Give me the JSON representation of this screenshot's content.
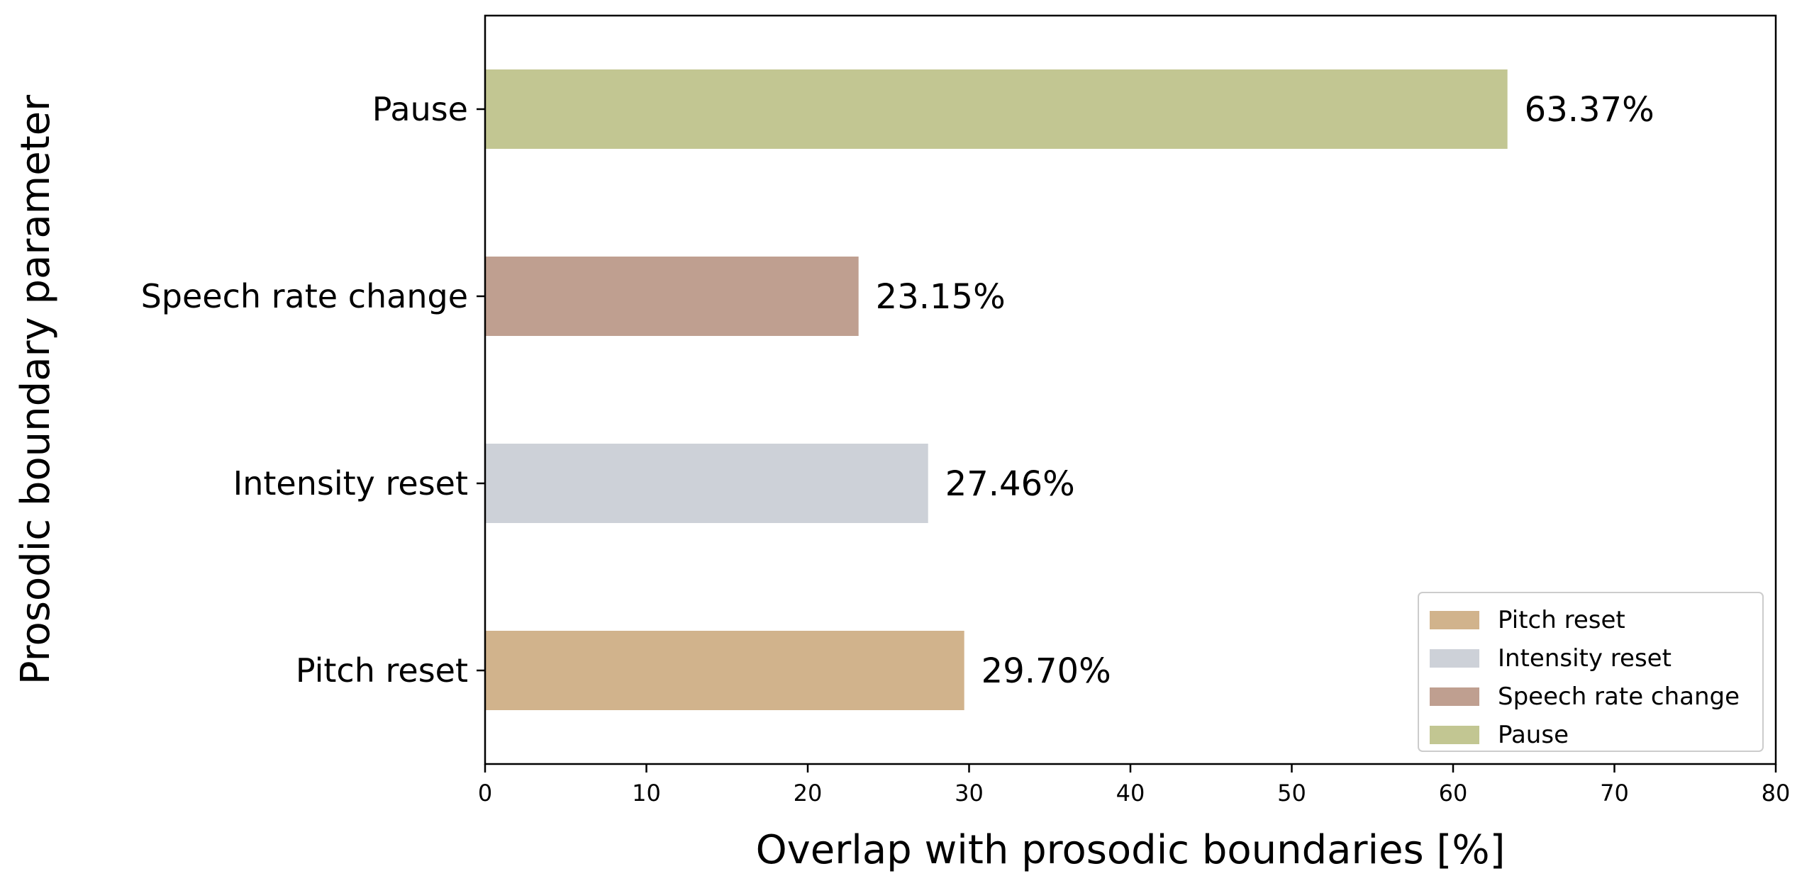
{
  "chart_data": {
    "type": "bar",
    "orientation": "horizontal",
    "categories": [
      "Pitch reset",
      "Intensity reset",
      "Speech rate change",
      "Pause"
    ],
    "values": [
      29.7,
      27.46,
      23.15,
      63.37
    ],
    "value_labels": [
      "29.70%",
      "27.46%",
      "23.15%",
      "63.37%"
    ],
    "colors": [
      "#d1b38c",
      "#cdd1d8",
      "#bf9f90",
      "#c2c692"
    ],
    "xlabel": "Overlap with prosodic boundaries [%]",
    "ylabel": "Prosodic boundary parameter",
    "xlim": [
      0,
      80
    ],
    "xticks": [
      "0",
      "10",
      "20",
      "30",
      "40",
      "50",
      "60",
      "70",
      "80"
    ],
    "grid": false,
    "legend": {
      "position": "lower-right",
      "entries": [
        "Pitch reset",
        "Intensity reset",
        "Speech rate change",
        "Pause"
      ]
    }
  }
}
